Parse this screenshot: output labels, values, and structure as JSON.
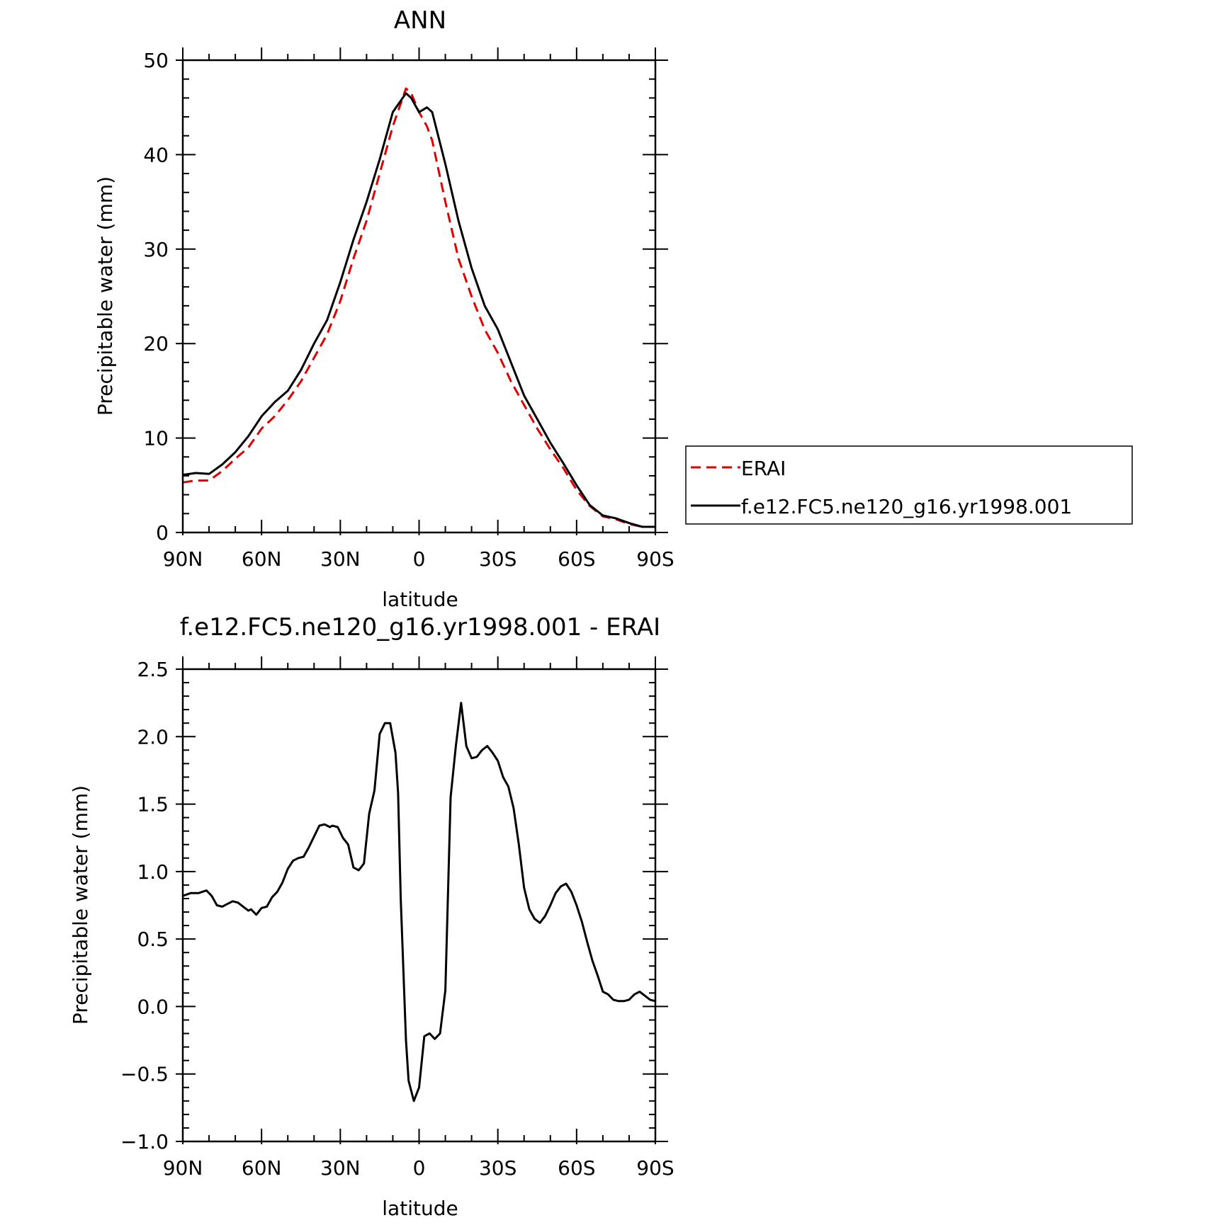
{
  "chart_data": [
    {
      "type": "line",
      "title": "ANN",
      "xlabel": "latitude",
      "ylabel": "Precipitable water (mm)",
      "xlim": [
        90,
        -90
      ],
      "ylim": [
        0,
        50
      ],
      "x_ticks": [
        {
          "v": 90,
          "label": "90N"
        },
        {
          "v": 60,
          "label": "60N"
        },
        {
          "v": 30,
          "label": "30N"
        },
        {
          "v": 0,
          "label": "0"
        },
        {
          "v": -30,
          "label": "30S"
        },
        {
          "v": -60,
          "label": "60S"
        },
        {
          "v": -90,
          "label": "90S"
        }
      ],
      "y_ticks": [
        {
          "v": 0,
          "label": "0"
        },
        {
          "v": 10,
          "label": "10"
        },
        {
          "v": 20,
          "label": "20"
        },
        {
          "v": 30,
          "label": "30"
        },
        {
          "v": 40,
          "label": "40"
        },
        {
          "v": 50,
          "label": "50"
        }
      ],
      "grid": false,
      "legend_position": "right",
      "series": [
        {
          "name": "ERAI",
          "color": "#e00000",
          "dash": "dashed",
          "x": [
            90,
            85,
            80,
            75,
            70,
            65,
            60,
            55,
            50,
            45,
            40,
            35,
            30,
            25,
            20,
            15,
            10,
            5,
            3,
            0,
            -3,
            -5,
            -10,
            -15,
            -20,
            -25,
            -30,
            -35,
            -40,
            -45,
            -50,
            -55,
            -60,
            -65,
            -70,
            -75,
            -80,
            -85,
            -90
          ],
          "y": [
            5.3,
            5.5,
            5.5,
            6.5,
            7.8,
            9.0,
            11.0,
            12.3,
            14.0,
            16.0,
            18.5,
            21.0,
            24.5,
            29.0,
            33.0,
            38.0,
            43.0,
            47.0,
            46.5,
            44.5,
            43.0,
            41.5,
            35.0,
            29.0,
            25.0,
            21.5,
            19.0,
            16.0,
            13.5,
            11.0,
            8.8,
            6.8,
            4.5,
            2.8,
            1.7,
            1.4,
            0.9,
            0.6,
            0.6
          ]
        },
        {
          "name": "f.e12.FC5.ne120_g16.yr1998.001",
          "color": "#000000",
          "dash": "solid",
          "x": [
            90,
            85,
            80,
            75,
            70,
            65,
            60,
            55,
            50,
            45,
            40,
            35,
            30,
            25,
            20,
            15,
            10,
            5,
            3,
            0,
            -3,
            -5,
            -10,
            -15,
            -20,
            -25,
            -30,
            -35,
            -40,
            -45,
            -50,
            -55,
            -60,
            -65,
            -70,
            -75,
            -80,
            -85,
            -90
          ],
          "y": [
            6.1,
            6.3,
            6.2,
            7.2,
            8.5,
            10.2,
            12.3,
            13.8,
            15.0,
            17.2,
            20.0,
            22.5,
            26.5,
            31.0,
            35.0,
            39.5,
            44.5,
            46.5,
            46.0,
            44.5,
            45.0,
            44.5,
            39.0,
            33.0,
            28.0,
            24.0,
            21.5,
            18.0,
            14.5,
            12.0,
            9.5,
            7.3,
            5.0,
            2.9,
            1.8,
            1.5,
            1.0,
            0.6,
            0.6
          ]
        }
      ]
    },
    {
      "type": "line",
      "title": "f.e12.FC5.ne120_g16.yr1998.001 - ERAI",
      "xlabel": "latitude",
      "ylabel": "Precipitable water (mm)",
      "xlim": [
        90,
        -90
      ],
      "ylim": [
        -1.0,
        2.5
      ],
      "x_ticks": [
        {
          "v": 90,
          "label": "90N"
        },
        {
          "v": 60,
          "label": "60N"
        },
        {
          "v": 30,
          "label": "30N"
        },
        {
          "v": 0,
          "label": "0"
        },
        {
          "v": -30,
          "label": "30S"
        },
        {
          "v": -60,
          "label": "60S"
        },
        {
          "v": -90,
          "label": "90S"
        }
      ],
      "y_ticks": [
        {
          "v": -1.0,
          "label": "−1.0"
        },
        {
          "v": -0.5,
          "label": "−0.5"
        },
        {
          "v": 0.0,
          "label": "0.0"
        },
        {
          "v": 0.5,
          "label": "0.5"
        },
        {
          "v": 1.0,
          "label": "1.0"
        },
        {
          "v": 1.5,
          "label": "1.5"
        },
        {
          "v": 2.0,
          "label": "2.0"
        },
        {
          "v": 2.5,
          "label": "2.5"
        }
      ],
      "grid": false,
      "series": [
        {
          "color": "#000000",
          "dash": "solid",
          "x": [
            90,
            87,
            84,
            81,
            79,
            77,
            75,
            73,
            71,
            69,
            67,
            65,
            64,
            62,
            60,
            58,
            56,
            54,
            52,
            50,
            48,
            46,
            44,
            42,
            40,
            38,
            36,
            34,
            33,
            31,
            29,
            27,
            25,
            23,
            21,
            19,
            17,
            15,
            13,
            11,
            9,
            8,
            7,
            5,
            4,
            2,
            0,
            -2,
            -4,
            -6,
            -8,
            -10,
            -12,
            -14,
            -16,
            -18,
            -20,
            -22,
            -24,
            -26,
            -28,
            -30,
            -32,
            -34,
            -36,
            -38,
            -40,
            -42,
            -44,
            -46,
            -48,
            -50,
            -52,
            -54,
            -56,
            -58,
            -60,
            -62,
            -64,
            -66,
            -68,
            -70,
            -72,
            -74,
            -76,
            -78,
            -80,
            -82,
            -84,
            -86,
            -88,
            -90
          ],
          "y": [
            0.82,
            0.84,
            0.84,
            0.86,
            0.82,
            0.75,
            0.74,
            0.76,
            0.78,
            0.77,
            0.74,
            0.71,
            0.72,
            0.68,
            0.73,
            0.74,
            0.81,
            0.85,
            0.92,
            1.02,
            1.08,
            1.1,
            1.11,
            1.18,
            1.26,
            1.34,
            1.35,
            1.33,
            1.34,
            1.33,
            1.25,
            1.2,
            1.03,
            1.01,
            1.06,
            1.43,
            1.6,
            2.02,
            2.1,
            2.1,
            1.88,
            1.58,
            0.8,
            -0.25,
            -0.55,
            -0.7,
            -0.6,
            -0.22,
            -0.2,
            -0.24,
            -0.2,
            0.12,
            1.55,
            1.93,
            2.25,
            1.93,
            1.84,
            1.85,
            1.9,
            1.93,
            1.88,
            1.82,
            1.7,
            1.63,
            1.47,
            1.2,
            0.88,
            0.72,
            0.65,
            0.62,
            0.67,
            0.75,
            0.84,
            0.89,
            0.91,
            0.85,
            0.75,
            0.63,
            0.48,
            0.34,
            0.23,
            0.11,
            0.09,
            0.05,
            0.04,
            0.04,
            0.05,
            0.09,
            0.11,
            0.08,
            0.05,
            0.04
          ]
        }
      ]
    }
  ]
}
